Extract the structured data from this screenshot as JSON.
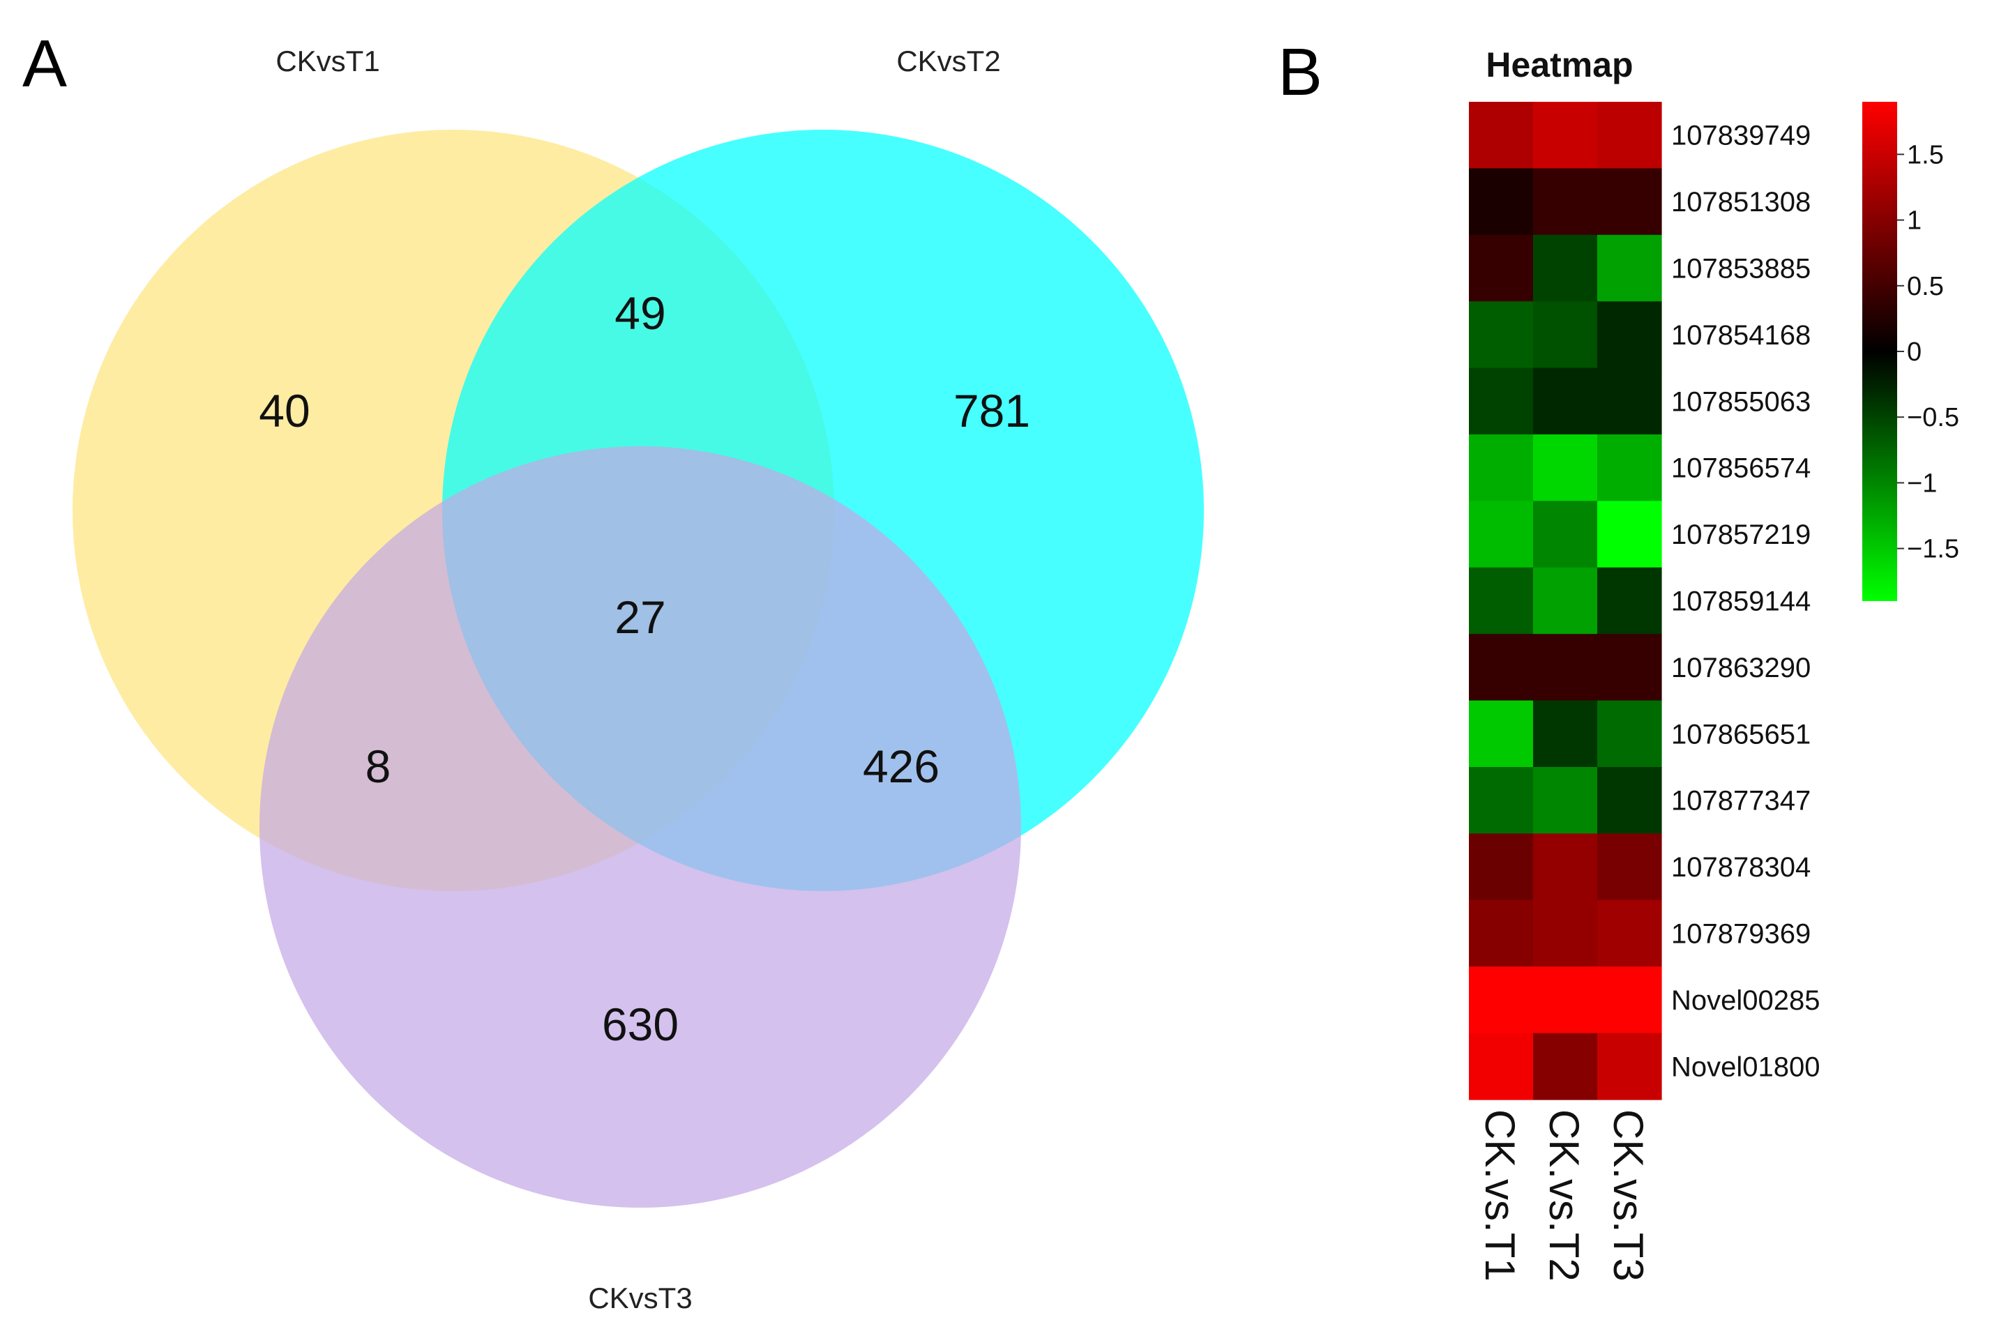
{
  "chart_data": [
    {
      "type": "venn",
      "panel": "A",
      "sets": [
        {
          "name": "CKvsT1",
          "color": "#fde47f"
        },
        {
          "name": "CKvsT2",
          "color": "#00ffff"
        },
        {
          "name": "CKvsT3",
          "color": "#c3a9e6"
        }
      ],
      "regions": [
        {
          "sets": [
            "CKvsT1"
          ],
          "count": "40"
        },
        {
          "sets": [
            "CKvsT2"
          ],
          "count": "781"
        },
        {
          "sets": [
            "CKvsT3"
          ],
          "count": "630"
        },
        {
          "sets": [
            "CKvsT1",
            "CKvsT2"
          ],
          "count": "49"
        },
        {
          "sets": [
            "CKvsT1",
            "CKvsT3"
          ],
          "count": "8"
        },
        {
          "sets": [
            "CKvsT2",
            "CKvsT3"
          ],
          "count": "426"
        },
        {
          "sets": [
            "CKvsT1",
            "CKvsT2",
            "CKvsT3"
          ],
          "count": "27"
        }
      ]
    },
    {
      "type": "heatmap",
      "panel": "B",
      "title": "Heatmap",
      "rows": [
        "107839749",
        "107851308",
        "107853885",
        "107854168",
        "107855063",
        "107856574",
        "107857219",
        "107859144",
        "107863290",
        "107865651",
        "107877347",
        "107878304",
        "107879369",
        "Novel00285",
        "Novel01800"
      ],
      "columns": [
        "CK.vs.T1",
        "CK.vs.T2",
        "CK.vs.T3"
      ],
      "values": [
        [
          1.3,
          1.5,
          1.4
        ],
        [
          0.2,
          0.4,
          0.4
        ],
        [
          0.4,
          -0.5,
          -1.2
        ],
        [
          -0.7,
          -0.6,
          -0.3
        ],
        [
          -0.5,
          -0.3,
          -0.3
        ],
        [
          -1.3,
          -1.6,
          -1.3
        ],
        [
          -1.4,
          -1.0,
          -1.9
        ],
        [
          -0.7,
          -1.2,
          -0.4
        ],
        [
          0.4,
          0.4,
          0.4
        ],
        [
          -1.5,
          -0.4,
          -0.8
        ],
        [
          -0.8,
          -1.0,
          -0.4
        ],
        [
          0.8,
          1.1,
          0.9
        ],
        [
          1.0,
          1.1,
          1.2
        ],
        [
          1.9,
          1.9,
          1.9
        ],
        [
          1.8,
          1.0,
          1.5
        ]
      ],
      "color_scale": {
        "low": "#00ff00",
        "mid": "#000000",
        "high": "#ff0000",
        "min": -1.9,
        "max": 1.9
      },
      "legend_ticks": [
        1.5,
        1,
        0.5,
        0,
        -0.5,
        -1,
        -1.5
      ],
      "legend_tick_labels": [
        "1.5",
        "1",
        "0.5",
        "0",
        "−0.5",
        "−1",
        "−1.5"
      ]
    }
  ]
}
